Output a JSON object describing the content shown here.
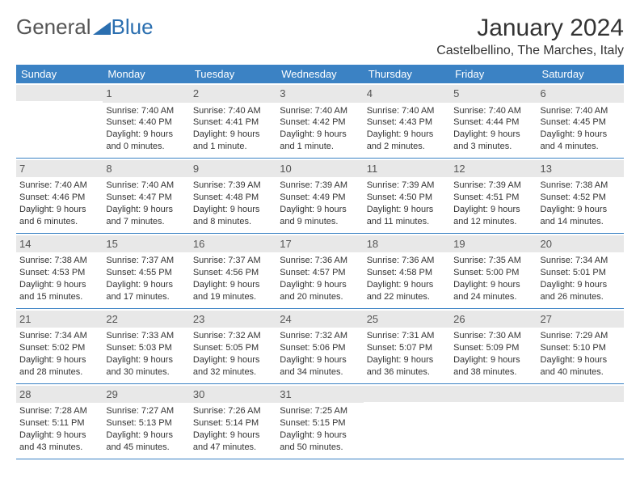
{
  "logo": {
    "text1": "General",
    "text2": "Blue"
  },
  "title": "January 2024",
  "location": "Castelbellino, The Marches, Italy",
  "colors": {
    "header_bg": "#3b82c4",
    "header_text": "#ffffff",
    "daynum_bg": "#e8e8e8",
    "rule": "#3b82c4",
    "logo_blue": "#2b6fb0"
  },
  "dayNames": [
    "Sunday",
    "Monday",
    "Tuesday",
    "Wednesday",
    "Thursday",
    "Friday",
    "Saturday"
  ],
  "weeks": [
    [
      {
        "n": "",
        "sr": "",
        "ss": "",
        "dl": ""
      },
      {
        "n": "1",
        "sr": "Sunrise: 7:40 AM",
        "ss": "Sunset: 4:40 PM",
        "dl": "Daylight: 9 hours and 0 minutes."
      },
      {
        "n": "2",
        "sr": "Sunrise: 7:40 AM",
        "ss": "Sunset: 4:41 PM",
        "dl": "Daylight: 9 hours and 1 minute."
      },
      {
        "n": "3",
        "sr": "Sunrise: 7:40 AM",
        "ss": "Sunset: 4:42 PM",
        "dl": "Daylight: 9 hours and 1 minute."
      },
      {
        "n": "4",
        "sr": "Sunrise: 7:40 AM",
        "ss": "Sunset: 4:43 PM",
        "dl": "Daylight: 9 hours and 2 minutes."
      },
      {
        "n": "5",
        "sr": "Sunrise: 7:40 AM",
        "ss": "Sunset: 4:44 PM",
        "dl": "Daylight: 9 hours and 3 minutes."
      },
      {
        "n": "6",
        "sr": "Sunrise: 7:40 AM",
        "ss": "Sunset: 4:45 PM",
        "dl": "Daylight: 9 hours and 4 minutes."
      }
    ],
    [
      {
        "n": "7",
        "sr": "Sunrise: 7:40 AM",
        "ss": "Sunset: 4:46 PM",
        "dl": "Daylight: 9 hours and 6 minutes."
      },
      {
        "n": "8",
        "sr": "Sunrise: 7:40 AM",
        "ss": "Sunset: 4:47 PM",
        "dl": "Daylight: 9 hours and 7 minutes."
      },
      {
        "n": "9",
        "sr": "Sunrise: 7:39 AM",
        "ss": "Sunset: 4:48 PM",
        "dl": "Daylight: 9 hours and 8 minutes."
      },
      {
        "n": "10",
        "sr": "Sunrise: 7:39 AM",
        "ss": "Sunset: 4:49 PM",
        "dl": "Daylight: 9 hours and 9 minutes."
      },
      {
        "n": "11",
        "sr": "Sunrise: 7:39 AM",
        "ss": "Sunset: 4:50 PM",
        "dl": "Daylight: 9 hours and 11 minutes."
      },
      {
        "n": "12",
        "sr": "Sunrise: 7:39 AM",
        "ss": "Sunset: 4:51 PM",
        "dl": "Daylight: 9 hours and 12 minutes."
      },
      {
        "n": "13",
        "sr": "Sunrise: 7:38 AM",
        "ss": "Sunset: 4:52 PM",
        "dl": "Daylight: 9 hours and 14 minutes."
      }
    ],
    [
      {
        "n": "14",
        "sr": "Sunrise: 7:38 AM",
        "ss": "Sunset: 4:53 PM",
        "dl": "Daylight: 9 hours and 15 minutes."
      },
      {
        "n": "15",
        "sr": "Sunrise: 7:37 AM",
        "ss": "Sunset: 4:55 PM",
        "dl": "Daylight: 9 hours and 17 minutes."
      },
      {
        "n": "16",
        "sr": "Sunrise: 7:37 AM",
        "ss": "Sunset: 4:56 PM",
        "dl": "Daylight: 9 hours and 19 minutes."
      },
      {
        "n": "17",
        "sr": "Sunrise: 7:36 AM",
        "ss": "Sunset: 4:57 PM",
        "dl": "Daylight: 9 hours and 20 minutes."
      },
      {
        "n": "18",
        "sr": "Sunrise: 7:36 AM",
        "ss": "Sunset: 4:58 PM",
        "dl": "Daylight: 9 hours and 22 minutes."
      },
      {
        "n": "19",
        "sr": "Sunrise: 7:35 AM",
        "ss": "Sunset: 5:00 PM",
        "dl": "Daylight: 9 hours and 24 minutes."
      },
      {
        "n": "20",
        "sr": "Sunrise: 7:34 AM",
        "ss": "Sunset: 5:01 PM",
        "dl": "Daylight: 9 hours and 26 minutes."
      }
    ],
    [
      {
        "n": "21",
        "sr": "Sunrise: 7:34 AM",
        "ss": "Sunset: 5:02 PM",
        "dl": "Daylight: 9 hours and 28 minutes."
      },
      {
        "n": "22",
        "sr": "Sunrise: 7:33 AM",
        "ss": "Sunset: 5:03 PM",
        "dl": "Daylight: 9 hours and 30 minutes."
      },
      {
        "n": "23",
        "sr": "Sunrise: 7:32 AM",
        "ss": "Sunset: 5:05 PM",
        "dl": "Daylight: 9 hours and 32 minutes."
      },
      {
        "n": "24",
        "sr": "Sunrise: 7:32 AM",
        "ss": "Sunset: 5:06 PM",
        "dl": "Daylight: 9 hours and 34 minutes."
      },
      {
        "n": "25",
        "sr": "Sunrise: 7:31 AM",
        "ss": "Sunset: 5:07 PM",
        "dl": "Daylight: 9 hours and 36 minutes."
      },
      {
        "n": "26",
        "sr": "Sunrise: 7:30 AM",
        "ss": "Sunset: 5:09 PM",
        "dl": "Daylight: 9 hours and 38 minutes."
      },
      {
        "n": "27",
        "sr": "Sunrise: 7:29 AM",
        "ss": "Sunset: 5:10 PM",
        "dl": "Daylight: 9 hours and 40 minutes."
      }
    ],
    [
      {
        "n": "28",
        "sr": "Sunrise: 7:28 AM",
        "ss": "Sunset: 5:11 PM",
        "dl": "Daylight: 9 hours and 43 minutes."
      },
      {
        "n": "29",
        "sr": "Sunrise: 7:27 AM",
        "ss": "Sunset: 5:13 PM",
        "dl": "Daylight: 9 hours and 45 minutes."
      },
      {
        "n": "30",
        "sr": "Sunrise: 7:26 AM",
        "ss": "Sunset: 5:14 PM",
        "dl": "Daylight: 9 hours and 47 minutes."
      },
      {
        "n": "31",
        "sr": "Sunrise: 7:25 AM",
        "ss": "Sunset: 5:15 PM",
        "dl": "Daylight: 9 hours and 50 minutes."
      },
      {
        "n": "",
        "sr": "",
        "ss": "",
        "dl": ""
      },
      {
        "n": "",
        "sr": "",
        "ss": "",
        "dl": ""
      },
      {
        "n": "",
        "sr": "",
        "ss": "",
        "dl": ""
      }
    ]
  ]
}
